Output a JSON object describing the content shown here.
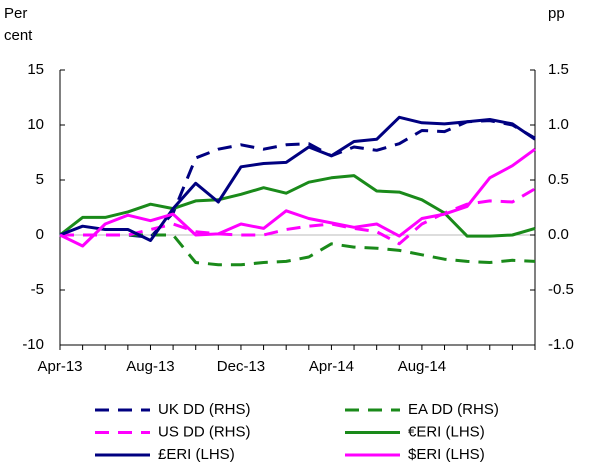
{
  "chart_data": {
    "type": "line",
    "y_label_lines": [
      "Per",
      "cent"
    ],
    "y2_label": "pp",
    "categories": [
      "Apr-13",
      null,
      null,
      null,
      "Aug-13",
      null,
      null,
      null,
      "Dec-13",
      null,
      null,
      null,
      "Apr-14",
      null,
      null,
      null,
      "Aug-14",
      null,
      null,
      null,
      null,
      null
    ],
    "ylim": [
      -10,
      15
    ],
    "yticks": [
      15,
      10,
      5,
      0,
      -5,
      -10
    ],
    "y2lim": [
      -1,
      1.5
    ],
    "y2ticks": [
      1.5,
      {
        "value": 1,
        "label": "1.0"
      },
      0.5,
      {
        "value": 0,
        "label": "0.0"
      },
      -0.5,
      {
        "value": -1,
        "label": "-1.0"
      }
    ],
    "zero_line": true,
    "series": [
      {
        "name": "UK DD (RHS)",
        "color": "#000080",
        "dashed": true,
        "axis": "y2",
        "values": [
          0,
          0,
          0,
          0,
          -0.02,
          0.2,
          0.7,
          0.78,
          0.82,
          0.78,
          0.82,
          0.83,
          0.72,
          0.8,
          0.77,
          0.83,
          0.95,
          0.94,
          1.03,
          1.04,
          1.0,
          0.88
        ]
      },
      {
        "name": "EA DD (RHS)",
        "color": "#1a8a1a",
        "dashed": true,
        "axis": "y2",
        "values": [
          0,
          0,
          0,
          0,
          0,
          0,
          -0.25,
          -0.27,
          -0.27,
          -0.25,
          -0.24,
          -0.2,
          -0.08,
          -0.11,
          -0.12,
          -0.14,
          -0.18,
          -0.22,
          -0.24,
          -0.25,
          -0.23,
          -0.24
        ]
      },
      {
        "name": "US DD (RHS)",
        "color": "#ff00ff",
        "dashed": true,
        "axis": "y2",
        "values": [
          0,
          0,
          0,
          0,
          0.05,
          0.1,
          0.03,
          0.01,
          0,
          0,
          0.05,
          0.08,
          0.1,
          0.06,
          0.03,
          -0.08,
          0.1,
          0.2,
          0.28,
          0.31,
          0.3,
          0.42
        ]
      },
      {
        "name": "€ERI (LHS)",
        "color": "#1a8a1a",
        "dashed": false,
        "axis": "y",
        "values": [
          0,
          1.6,
          1.6,
          2.1,
          2.8,
          2.4,
          3.1,
          3.2,
          3.7,
          4.3,
          3.8,
          4.8,
          5.2,
          5.4,
          4.0,
          3.9,
          3.2,
          2.0,
          -0.1,
          -0.1,
          0,
          0.6
        ]
      },
      {
        "name": "£ERI (LHS)",
        "color": "#000080",
        "dashed": false,
        "axis": "y",
        "values": [
          0,
          0.8,
          0.5,
          0.5,
          -0.5,
          2.4,
          4.7,
          3.0,
          6.2,
          6.5,
          6.6,
          8.0,
          7.2,
          8.5,
          8.7,
          10.7,
          10.2,
          10.1,
          10.3,
          10.5,
          10.1,
          8.7
        ]
      },
      {
        "name": "$ERI (LHS)",
        "color": "#ff00ff",
        "dashed": false,
        "axis": "y",
        "values": [
          0,
          -1.0,
          1.0,
          1.8,
          1.3,
          1.9,
          0,
          0.1,
          1.0,
          0.6,
          2.2,
          1.5,
          1.1,
          0.7,
          1.0,
          -0.1,
          1.5,
          1.9,
          2.6,
          5.2,
          6.3,
          7.8
        ]
      }
    ]
  }
}
